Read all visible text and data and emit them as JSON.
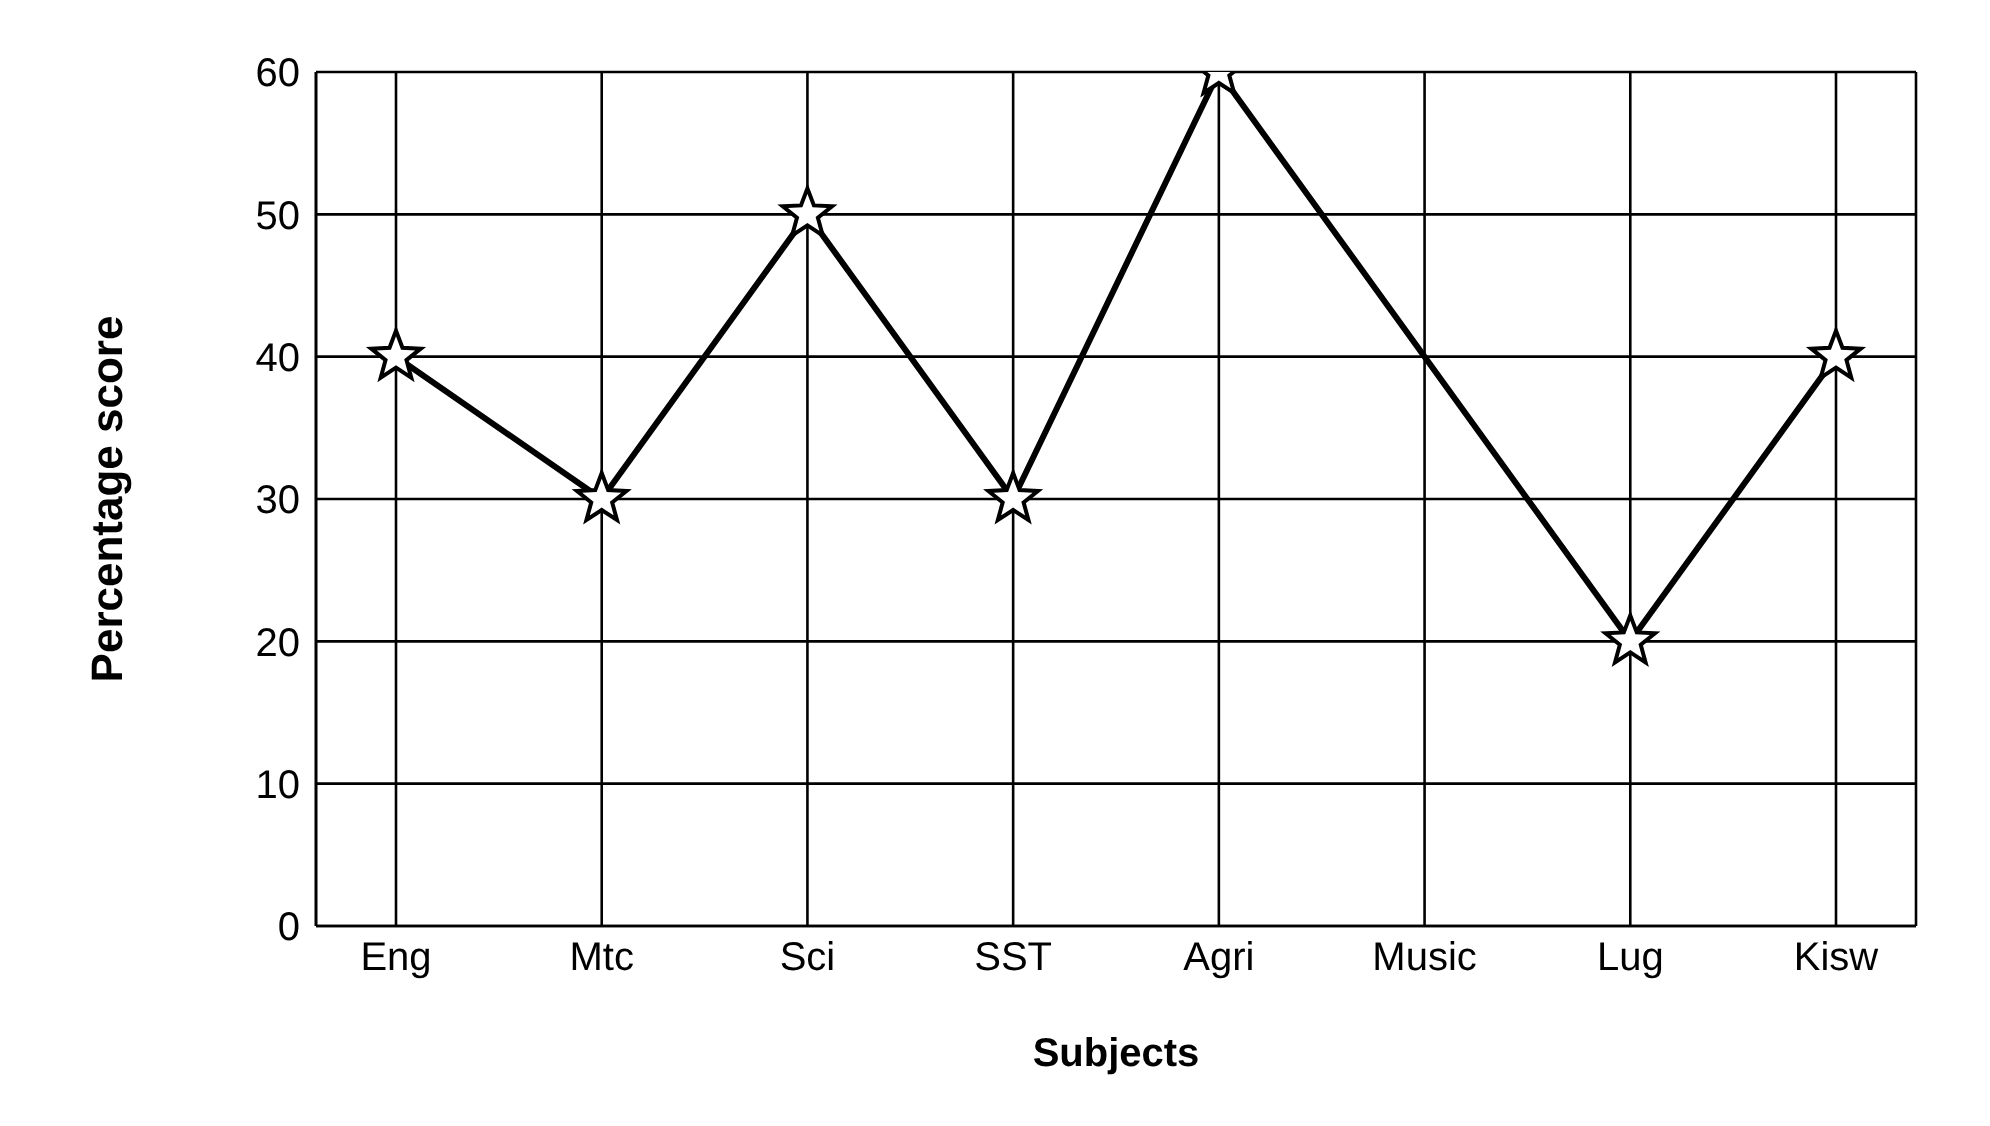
{
  "chart_data": {
    "type": "line",
    "xlabel": "Subjects",
    "ylabel": "Percentage score",
    "categories": [
      "Eng",
      "Mtc",
      "Sci",
      "SST",
      "Agri",
      "Music",
      "Lug",
      "Kisw"
    ],
    "series": [
      {
        "color": "#000000",
        "values": [
          40,
          30,
          50,
          30,
          60,
          null,
          20,
          40
        ]
      }
    ],
    "ylim": [
      0,
      60
    ],
    "yticks": [
      0,
      10,
      20,
      30,
      40,
      50,
      60
    ],
    "grid": true,
    "legend": false,
    "marker": "star",
    "line_style": "solid"
  }
}
